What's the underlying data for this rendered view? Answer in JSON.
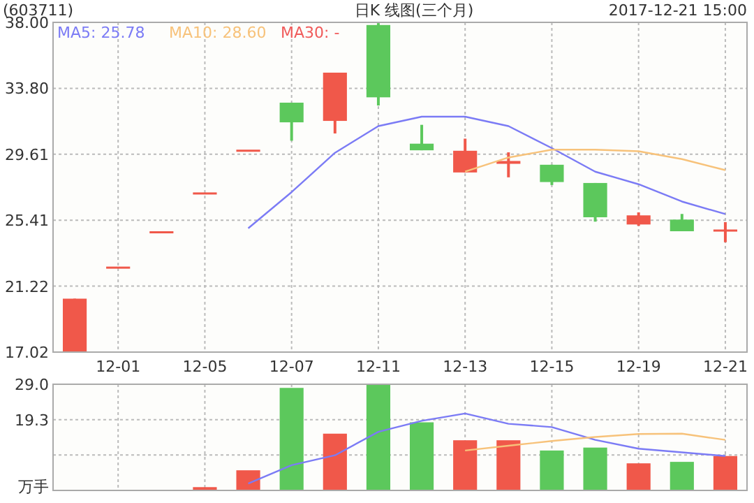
{
  "chart_data": [
    {
      "type": "candlestick",
      "title": "日K 线图(三个月)",
      "subtitle": "(603711)",
      "annotations": [
        "2017-12-21 15:00"
      ],
      "categories": [
        null,
        "12-01",
        null,
        "12-05",
        null,
        "12-07",
        null,
        "12-11",
        null,
        "12-13",
        null,
        "12-15",
        null,
        "12-19",
        null,
        "12-21"
      ],
      "ohlc": [
        [
          17.02,
          20.42,
          17.02,
          20.42
        ],
        [
          22.46,
          22.46,
          22.46,
          22.46
        ],
        [
          24.71,
          24.71,
          24.71,
          24.71
        ],
        [
          27.18,
          27.18,
          27.18,
          27.18
        ],
        [
          29.9,
          29.9,
          29.9,
          29.9
        ],
        [
          32.89,
          32.89,
          30.47,
          31.64
        ],
        [
          31.73,
          34.8,
          30.93,
          34.8
        ],
        [
          37.83,
          37.95,
          32.71,
          33.23
        ],
        [
          30.28,
          31.48,
          29.86,
          29.86
        ],
        [
          28.45,
          30.6,
          28.45,
          29.83
        ],
        [
          29.0,
          29.73,
          28.14,
          29.18
        ],
        [
          28.94,
          28.94,
          27.65,
          27.84
        ],
        [
          27.78,
          27.78,
          25.32,
          25.6
        ],
        [
          25.14,
          25.91,
          25.05,
          25.72
        ],
        [
          25.45,
          25.81,
          24.71,
          24.71
        ],
        [
          24.7,
          25.29,
          24.01,
          24.82
        ]
      ],
      "colors": [
        "#f0584a",
        "#f0584a",
        "#f0584a",
        "#f0584a",
        "#f0584a",
        "#5cc85c",
        "#f0584a",
        "#5cc85c",
        "#5cc85c",
        "#f0584a",
        "#f0584a",
        "#5cc85c",
        "#5cc85c",
        "#f0584a",
        "#5cc85c",
        "#f0584a"
      ],
      "series": [
        {
          "name": "MA5: 25.78",
          "type": "line",
          "color": "#7b7bf5",
          "values": [
            null,
            null,
            null,
            null,
            24.9,
            27.2,
            29.7,
            31.4,
            32.0,
            32.0,
            31.4,
            30.0,
            28.5,
            27.7,
            26.6,
            25.8
          ]
        },
        {
          "name": "MA10: 28.60",
          "type": "line",
          "color": "#f7c27a",
          "values": [
            null,
            null,
            null,
            null,
            null,
            null,
            null,
            null,
            null,
            28.5,
            29.4,
            29.9,
            29.9,
            29.8,
            29.3,
            28.6
          ]
        },
        {
          "name": "MA30: -",
          "type": "line",
          "color": "#f05a5a",
          "values": [
            null,
            null,
            null,
            null,
            null,
            null,
            null,
            null,
            null,
            null,
            null,
            null,
            null,
            null,
            null,
            null
          ]
        }
      ],
      "ylim": [
        17.02,
        38
      ],
      "yticks": [
        17.02,
        21.22,
        25.41,
        29.61,
        {
          "value": 33.8,
          "label": "33.80"
        },
        {
          "value": 38,
          "label": "38.00"
        }
      ],
      "grid": true,
      "legend": "top left"
    },
    {
      "type": "bar",
      "categories": [
        null,
        null,
        null,
        null,
        null,
        null,
        null,
        null,
        null,
        null,
        null,
        null,
        null,
        null,
        null,
        null
      ],
      "series": [
        {
          "type": "bar",
          "values": [
            null,
            null,
            null,
            0.9,
            5.5,
            28.0,
            15.5,
            29.0,
            18.6,
            13.7,
            13.7,
            10.9,
            11.7,
            7.4,
            7.8,
            9.4
          ],
          "colors": [
            null,
            null,
            null,
            "#f0584a",
            "#f0584a",
            "#5cc85c",
            "#f0584a",
            "#5cc85c",
            "#5cc85c",
            "#f0584a",
            "#f0584a",
            "#5cc85c",
            "#5cc85c",
            "#f0584a",
            "#5cc85c",
            "#f0584a"
          ]
        },
        {
          "type": "line",
          "color": "#7b7bf5",
          "values": [
            null,
            null,
            null,
            null,
            1.9,
            6.9,
            9.6,
            16.0,
            19.0,
            21.0,
            18.2,
            17.3,
            13.8,
            11.4,
            10.4,
            9.4
          ]
        },
        {
          "type": "line",
          "color": "#f7c27a",
          "values": [
            null,
            null,
            null,
            null,
            null,
            null,
            null,
            null,
            null,
            10.9,
            12.2,
            13.5,
            14.6,
            15.4,
            15.5,
            13.8
          ]
        }
      ],
      "ylim": [
        0,
        29
      ],
      "yticks": [
        {
          "value": 0,
          "label": "万手"
        },
        {
          "value": 9.7,
          "label": null
        },
        {
          "value": 19.3,
          "label": "19.3"
        },
        {
          "value": 29,
          "label": "29.0"
        }
      ],
      "grid": true,
      "tick_labels": "y"
    }
  ]
}
